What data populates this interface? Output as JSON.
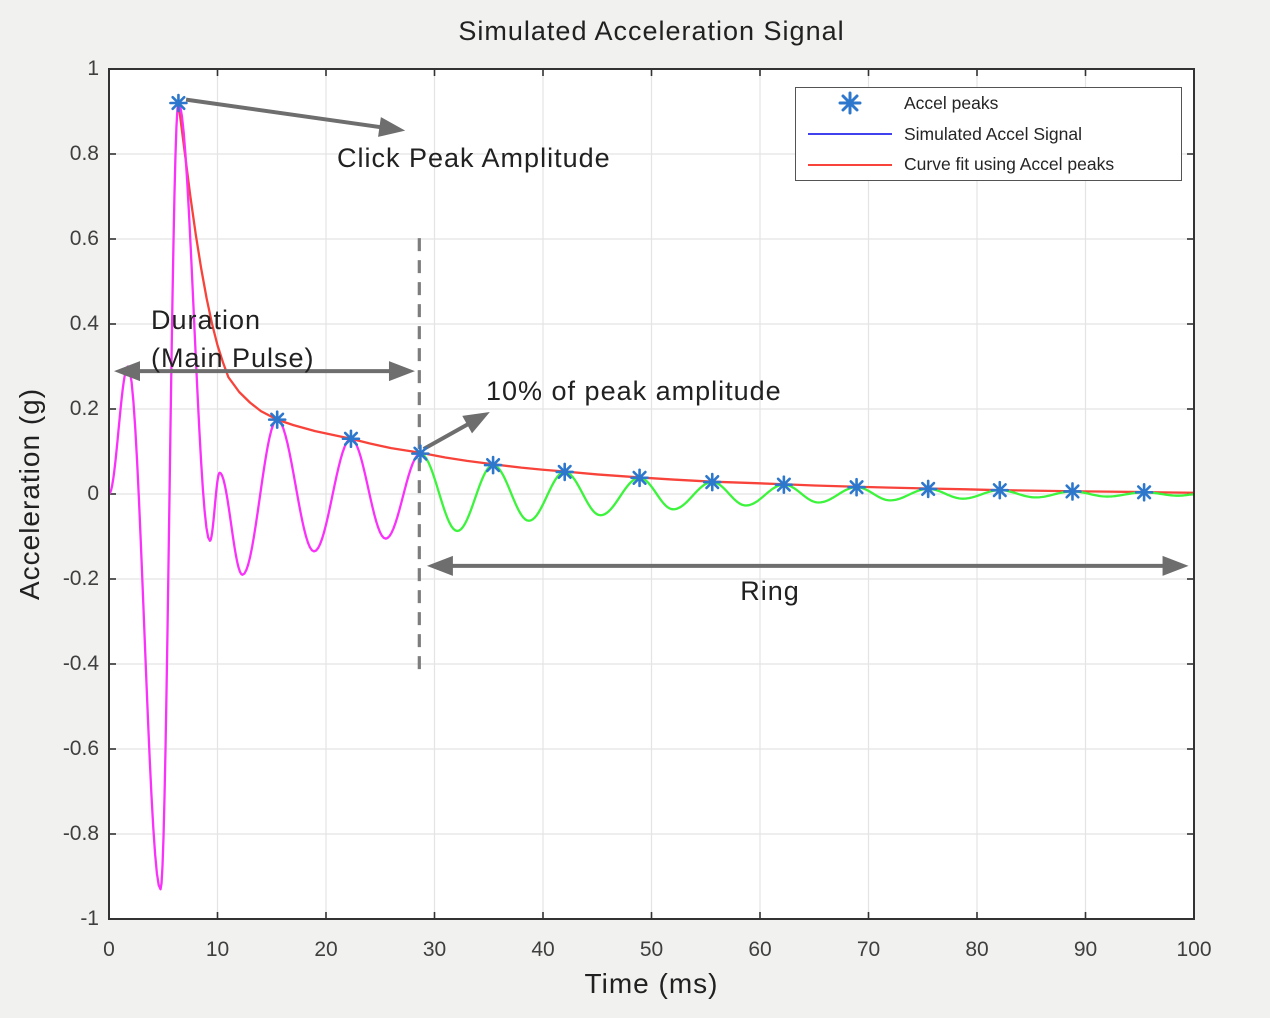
{
  "title": "Simulated Acceleration Signal",
  "colors": {
    "signal_main": "#fa31fa",
    "signal_ring": "#3bf43b",
    "fit": "#f8433b",
    "marker": "#2d77cc",
    "legend_line_blue": "#4141ee",
    "annotation": "#6e6e6e",
    "dashed": "#7d7d7d",
    "grid": "#e4e4e4",
    "border": "#333333",
    "tick_text": "#3f3f3f",
    "text": "#212121",
    "background": "#f1f1ef",
    "plot_background": "#ffffff"
  },
  "legend": {
    "items": [
      {
        "label": "Accel peaks",
        "symbol": "asterisk"
      },
      {
        "label": "Simulated Accel Signal",
        "symbol": "line-blue"
      },
      {
        "label": "Curve fit using Accel peaks",
        "symbol": "line-red"
      }
    ]
  },
  "chart_data": {
    "type": "line",
    "title": "Simulated Acceleration Signal",
    "xlabel": "Time (ms)",
    "ylabel": "Acceleration (g)",
    "xlim": [
      0,
      100
    ],
    "ylim": [
      -1,
      1
    ],
    "xticks": [
      0,
      10,
      20,
      30,
      40,
      50,
      60,
      70,
      80,
      90,
      100
    ],
    "xtick_labels": [
      "0",
      "10",
      "20",
      "30",
      "40",
      "50",
      "60",
      "70",
      "80",
      "90",
      "100"
    ],
    "yticks": [
      -1,
      -0.8,
      -0.6,
      -0.4,
      -0.2,
      0,
      0.2,
      0.4,
      0.6,
      0.8,
      1
    ],
    "ytick_labels": [
      "-1",
      "-0.8",
      "-0.6",
      "-0.4",
      "-0.2",
      "0",
      "0.2",
      "0.4",
      "0.6",
      "0.8",
      "1"
    ],
    "grid": true,
    "legend_position": "top-right",
    "signal": {
      "name": "Simulated Accel Signal",
      "split_t": 28.7,
      "keypoints": [
        [
          0,
          0
        ],
        [
          1.75,
          0.3
        ],
        [
          4.75,
          -0.93
        ],
        [
          6.4,
          0.92
        ],
        [
          9.3,
          -0.11
        ],
        [
          10.2,
          0.05
        ],
        [
          12.3,
          -0.19
        ],
        [
          15.5,
          0.175
        ],
        [
          18.9,
          -0.135
        ],
        [
          22.3,
          0.13
        ],
        [
          25.5,
          -0.105
        ],
        [
          28.7,
          0.095
        ],
        [
          32.1,
          -0.087
        ],
        [
          35.4,
          0.068
        ],
        [
          38.7,
          -0.063
        ],
        [
          42,
          0.052
        ],
        [
          45.3,
          -0.05
        ],
        [
          48.9,
          0.038
        ],
        [
          52,
          -0.036
        ],
        [
          55.6,
          0.028
        ],
        [
          58.7,
          -0.027
        ],
        [
          62.2,
          0.022
        ],
        [
          65.4,
          -0.02
        ],
        [
          68.9,
          0.016
        ],
        [
          72,
          -0.015
        ],
        [
          75.5,
          0.012
        ],
        [
          78.7,
          -0.011
        ],
        [
          82.1,
          0.009
        ],
        [
          85.4,
          -0.008
        ],
        [
          88.8,
          0.006
        ],
        [
          92,
          -0.006
        ],
        [
          95.4,
          0.004
        ],
        [
          98.6,
          -0.004
        ],
        [
          100,
          -0.001
        ]
      ]
    },
    "fit": {
      "name": "Curve fit using Accel peaks",
      "points": [
        [
          6.4,
          0.92
        ],
        [
          7,
          0.8
        ],
        [
          7.5,
          0.7
        ],
        [
          8,
          0.61
        ],
        [
          8.5,
          0.53
        ],
        [
          9,
          0.46
        ],
        [
          9.5,
          0.4
        ],
        [
          10,
          0.35
        ],
        [
          10.5,
          0.31
        ],
        [
          11,
          0.275
        ],
        [
          12,
          0.24
        ],
        [
          13,
          0.215
        ],
        [
          14,
          0.195
        ],
        [
          15.5,
          0.175
        ],
        [
          17,
          0.162
        ],
        [
          19,
          0.148
        ],
        [
          21,
          0.137
        ],
        [
          22.3,
          0.13
        ],
        [
          24,
          0.119
        ],
        [
          26,
          0.108
        ],
        [
          28.7,
          0.097
        ],
        [
          31,
          0.086
        ],
        [
          33,
          0.078
        ],
        [
          35.4,
          0.07
        ],
        [
          38,
          0.062
        ],
        [
          40,
          0.057
        ],
        [
          42,
          0.053
        ],
        [
          45,
          0.046
        ],
        [
          48.9,
          0.039
        ],
        [
          52,
          0.034
        ],
        [
          55.6,
          0.029
        ],
        [
          59,
          0.026
        ],
        [
          62.2,
          0.023
        ],
        [
          65,
          0.02
        ],
        [
          68.9,
          0.017
        ],
        [
          72,
          0.015
        ],
        [
          75.5,
          0.013
        ],
        [
          79,
          0.011
        ],
        [
          82.1,
          0.009
        ],
        [
          85,
          0.008
        ],
        [
          88.8,
          0.0065
        ],
        [
          92,
          0.0055
        ],
        [
          95.4,
          0.0045
        ],
        [
          98,
          0.0035
        ],
        [
          100,
          0.003
        ]
      ]
    },
    "peaks": {
      "name": "Accel peaks",
      "points": [
        [
          6.4,
          0.92
        ],
        [
          15.5,
          0.175
        ],
        [
          22.3,
          0.13
        ],
        [
          28.7,
          0.095
        ],
        [
          35.4,
          0.068
        ],
        [
          42,
          0.052
        ],
        [
          48.9,
          0.038
        ],
        [
          55.6,
          0.028
        ],
        [
          62.2,
          0.022
        ],
        [
          68.9,
          0.016
        ],
        [
          75.5,
          0.012
        ],
        [
          82.1,
          0.009
        ],
        [
          88.8,
          0.006
        ],
        [
          95.4,
          0.004
        ]
      ]
    },
    "annotations": {
      "click_peak": {
        "text": "Click Peak Amplitude",
        "arrow_from_tv": [
          7.1,
          0.928
        ],
        "arrow_to_tv": [
          27.3,
          0.855
        ]
      },
      "duration": {
        "text_line1": "Duration",
        "text_line2": "(Main Pulse)",
        "arrow_t": [
          0.46,
          28.2
        ],
        "arrow_v": 0.289
      },
      "ten_percent": {
        "text": "10% of peak amplitude",
        "arrow_from_tv": [
          29.0,
          0.106
        ],
        "arrow_to_tv": [
          35.1,
          0.193
        ]
      },
      "ring": {
        "text": "Ring",
        "arrow_t": [
          29.3,
          99.5
        ],
        "arrow_v": -0.169
      },
      "threshold_line": {
        "t": 28.6,
        "v_from": 0.602,
        "v_to": -0.419,
        "style": "dashed"
      }
    }
  }
}
